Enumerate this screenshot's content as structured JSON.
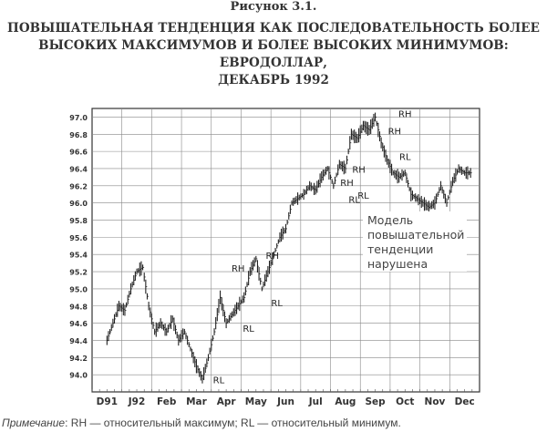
{
  "figure_label": "Рисунок 3.1.",
  "title_lines": [
    "ПОВЫШАТЕЛЬНАЯ ТЕНДЕНЦИЯ КАК ПОСЛЕДОВАТЕЛЬНОСТЬ БОЛЕЕ",
    "ВЫСОКИХ МАКСИМУМОВ И БОЛЕЕ ВЫСОКИХ МИНИМУМОВ: ЕВРОДОЛЛАР,",
    "ДЕКАБРЬ 1992"
  ],
  "note": {
    "prefix": "Примечание",
    "text": ": RH — относительный максимум; RL — относительный минимум."
  },
  "chart_data": {
    "type": "line",
    "style": "ohlc-bars",
    "x_tick_labels": [
      "D91",
      "J92",
      "Feb",
      "Mar",
      "Apr",
      "May",
      "Jun",
      "Jul",
      "Aug",
      "Sep",
      "Oct",
      "Nov",
      "Dec"
    ],
    "y_tick_labels": [
      "94.0",
      "94.2",
      "94.4",
      "94.6",
      "94.8",
      "95.0",
      "95.2",
      "95.4",
      "95.6",
      "95.8",
      "96.0",
      "96.2",
      "96.4",
      "96.6",
      "96.8",
      "97.0"
    ],
    "ylim": [
      93.8,
      97.1
    ],
    "grid": true,
    "series": [
      {
        "x": [
          0.0,
          0.2,
          0.4,
          0.6,
          0.8,
          1.0,
          1.2,
          1.4,
          1.6,
          1.8,
          2.0,
          2.2,
          2.4,
          2.6,
          2.8,
          3.0,
          3.2,
          3.4,
          3.6,
          3.8,
          4.0,
          4.2,
          4.4,
          4.6,
          4.8,
          5.0,
          5.2,
          5.4,
          5.6,
          5.8,
          6.0,
          6.2,
          6.4,
          6.6,
          6.8,
          7.0,
          7.2,
          7.4,
          7.6,
          7.8,
          8.0,
          8.2,
          8.4,
          8.6,
          8.8,
          9.0,
          9.2,
          9.4,
          9.6,
          9.8,
          10.0,
          10.2,
          10.4,
          10.6,
          10.8,
          11.0,
          11.2,
          11.4,
          11.6,
          11.8,
          12.0,
          12.2
        ],
        "values": [
          94.4,
          94.6,
          94.8,
          94.75,
          95.0,
          95.2,
          95.25,
          94.8,
          94.5,
          94.6,
          94.5,
          94.65,
          94.4,
          94.5,
          94.3,
          94.1,
          93.95,
          94.2,
          94.5,
          94.9,
          94.6,
          94.7,
          94.8,
          94.9,
          95.2,
          95.35,
          95.0,
          95.2,
          95.4,
          95.6,
          95.7,
          96.0,
          96.05,
          96.1,
          96.2,
          96.15,
          96.3,
          96.4,
          96.2,
          96.45,
          96.4,
          96.8,
          96.75,
          96.9,
          96.85,
          97.0,
          96.7,
          96.5,
          96.35,
          96.3,
          96.35,
          96.1,
          96.05,
          96.0,
          95.95,
          96.0,
          96.2,
          96.0,
          96.25,
          96.4,
          96.35,
          96.35
        ]
      }
    ],
    "annotations": [
      {
        "text": "RH",
        "x": 4.4,
        "y": 95.2
      },
      {
        "text": "RH",
        "x": 5.55,
        "y": 95.35
      },
      {
        "text": "RL",
        "x": 4.75,
        "y": 94.5
      },
      {
        "text": "RL",
        "x": 5.7,
        "y": 94.8
      },
      {
        "text": "RL",
        "x": 3.75,
        "y": 93.9
      },
      {
        "text": "RH",
        "x": 8.05,
        "y": 96.2
      },
      {
        "text": "RH",
        "x": 8.45,
        "y": 96.35
      },
      {
        "text": "RL",
        "x": 8.3,
        "y": 96.0
      },
      {
        "text": "RL",
        "x": 8.6,
        "y": 96.05
      },
      {
        "text": "RH",
        "x": 9.65,
        "y": 96.8
      },
      {
        "text": "RH",
        "x": 10.0,
        "y": 97.0
      },
      {
        "text": "RL",
        "x": 10.0,
        "y": 96.5
      }
    ],
    "callout": [
      "Модель",
      "повышательной",
      "тенденции",
      "нарушена"
    ]
  }
}
